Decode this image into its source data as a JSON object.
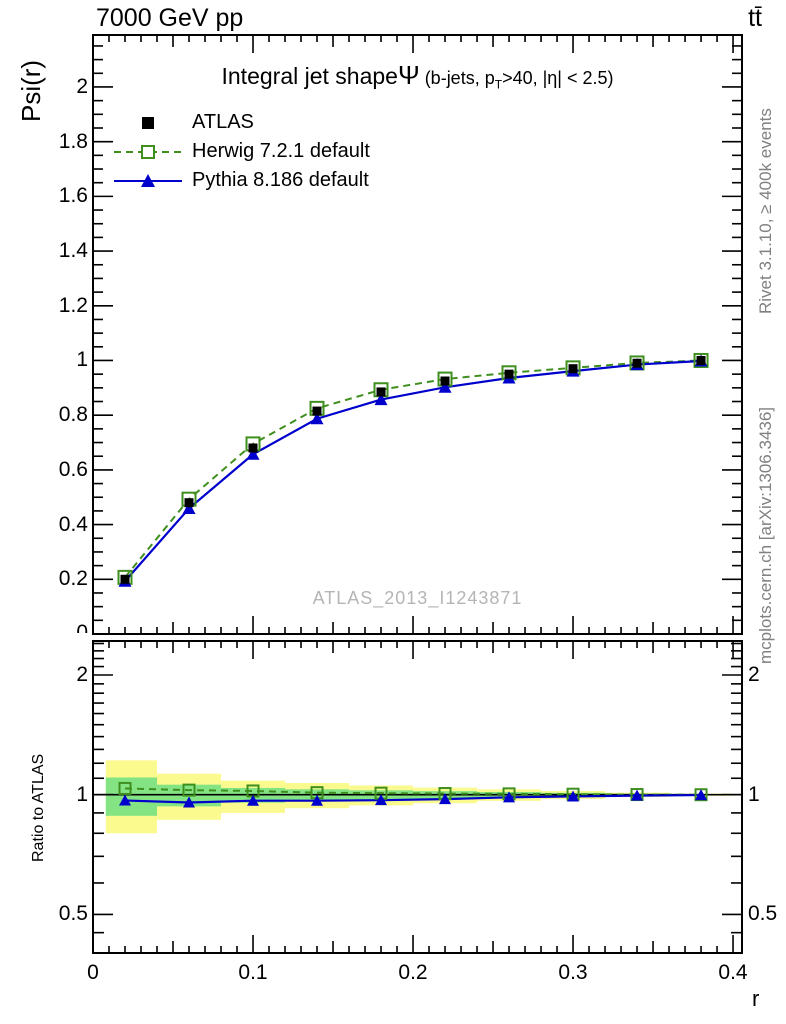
{
  "header": {
    "left": "7000 GeV pp",
    "right": "tt̄"
  },
  "title": {
    "text": "Integral jet shape",
    "symbol": "Ψ",
    "cuts_pre": " (b-jets, p",
    "cuts_sub": "T",
    "cuts_post": ">40, |η| < 2.5)"
  },
  "legend": {
    "items": [
      {
        "label": "ATLAS",
        "marker": "filled-square",
        "color": "#000000"
      },
      {
        "label": "Herwig 7.2.1 default",
        "marker": "open-square-dashed-line",
        "color": "#3f8f1f"
      },
      {
        "label": "Pythia 8.186 default",
        "marker": "filled-triangle-solid-line",
        "color": "#0000cc"
      }
    ]
  },
  "watermark": "ATLAS_2013_I1243871",
  "side_notes": {
    "top": "Rivet 3.1.10, ≥ 400k events",
    "bottom": "mcplots.cern.ch [arXiv:1306.3436]"
  },
  "axis_labels": {
    "y_main": "Psi(r)",
    "y_ratio": "Ratio to ATLAS",
    "x": "r",
    "clipped_zero": "0"
  },
  "colors": {
    "atlas": "#000000",
    "herwig": "#3f8f1f",
    "pythia": "#0000cc",
    "band_yellow": "#fafa8e",
    "band_green": "#84e484",
    "frame": "#000000",
    "note_gray": "#808080",
    "watermark_gray": "#b5b5b5"
  },
  "chart_data": {
    "type": "line",
    "title": "Integral jet shape Ψ (b-jets, pT>40, |η| < 2.5)",
    "xlabel": "r",
    "ylabel": "Psi(r)",
    "ratio_ylabel": "Ratio to ATLAS",
    "xlim": [
      0,
      0.4056
    ],
    "ylim_main": [
      0,
      2.19
    ],
    "ylim_ratio": [
      0.4,
      2.435
    ],
    "ratio_axis_scale": "log2",
    "grid": false,
    "legend_position": "top-left-inside",
    "x": [
      0.02,
      0.06,
      0.1,
      0.14,
      0.18,
      0.22,
      0.26,
      0.3,
      0.34,
      0.38
    ],
    "series": [
      {
        "name": "ATLAS",
        "marker": "filled-square",
        "color": "#000000",
        "line": "none",
        "values": [
          0.2,
          0.48,
          0.68,
          0.815,
          0.885,
          0.925,
          0.95,
          0.97,
          0.99,
          1.0
        ],
        "yerr": [
          0.008,
          0.008,
          0.007,
          0.006,
          0.005,
          0.005,
          0.004,
          0.004,
          0.003,
          0.003
        ]
      },
      {
        "name": "Herwig 7.2.1 default",
        "marker": "open-square",
        "color": "#3f8f1f",
        "line": "dashed",
        "values": [
          0.207,
          0.493,
          0.695,
          0.825,
          0.893,
          0.932,
          0.955,
          0.973,
          0.991,
          1.0
        ],
        "ratio_to_atlas": [
          1.037,
          1.027,
          1.022,
          1.012,
          1.009,
          1.007,
          1.005,
          1.003,
          1.001,
          1.0
        ]
      },
      {
        "name": "Pythia 8.186 default",
        "marker": "filled-triangle",
        "color": "#0000cc",
        "line": "solid",
        "values": [
          0.193,
          0.459,
          0.657,
          0.787,
          0.857,
          0.902,
          0.936,
          0.961,
          0.985,
          0.998
        ],
        "ratio_to_atlas": [
          0.967,
          0.956,
          0.966,
          0.966,
          0.969,
          0.975,
          0.985,
          0.99,
          0.995,
          0.998
        ]
      }
    ],
    "uncertainty_bands": {
      "bin_edges": [
        0.008,
        0.04,
        0.08,
        0.12,
        0.16,
        0.2,
        0.24,
        0.28,
        0.32,
        0.36,
        0.4
      ],
      "yellow_hi": [
        1.22,
        1.13,
        1.085,
        1.07,
        1.055,
        1.042,
        1.032,
        1.022,
        1.012,
        1.006
      ],
      "yellow_lo": [
        0.8,
        0.865,
        0.9,
        0.925,
        0.94,
        0.952,
        0.965,
        0.976,
        0.988,
        0.994
      ],
      "green_hi": [
        1.105,
        1.06,
        1.04,
        1.032,
        1.026,
        1.021,
        1.016,
        1.011,
        1.006,
        1.003
      ],
      "green_lo": [
        0.885,
        0.935,
        0.955,
        0.965,
        0.972,
        0.978,
        0.983,
        0.988,
        0.994,
        0.997
      ]
    },
    "xticks": [
      {
        "v": 0,
        "label": "0"
      },
      {
        "v": 0.1,
        "label": "0.1"
      },
      {
        "v": 0.2,
        "label": "0.2"
      },
      {
        "v": 0.3,
        "label": "0.3"
      },
      {
        "v": 0.4,
        "label": "0.4"
      }
    ],
    "main_yticks": [
      {
        "v": 0.2,
        "label": "0.2"
      },
      {
        "v": 0.4,
        "label": "0.4"
      },
      {
        "v": 0.6,
        "label": "0.6"
      },
      {
        "v": 0.8,
        "label": "0.8"
      },
      {
        "v": 1,
        "label": "1"
      },
      {
        "v": 1.2,
        "label": "1.2"
      },
      {
        "v": 1.4,
        "label": "1.4"
      },
      {
        "v": 1.6,
        "label": "1.6"
      },
      {
        "v": 1.8,
        "label": "1.8"
      },
      {
        "v": 2,
        "label": "2"
      }
    ],
    "ratio_yticks": [
      {
        "v": 0.5,
        "label": "0.5"
      },
      {
        "v": 1,
        "label": "1"
      },
      {
        "v": 2,
        "label": "2"
      }
    ]
  }
}
